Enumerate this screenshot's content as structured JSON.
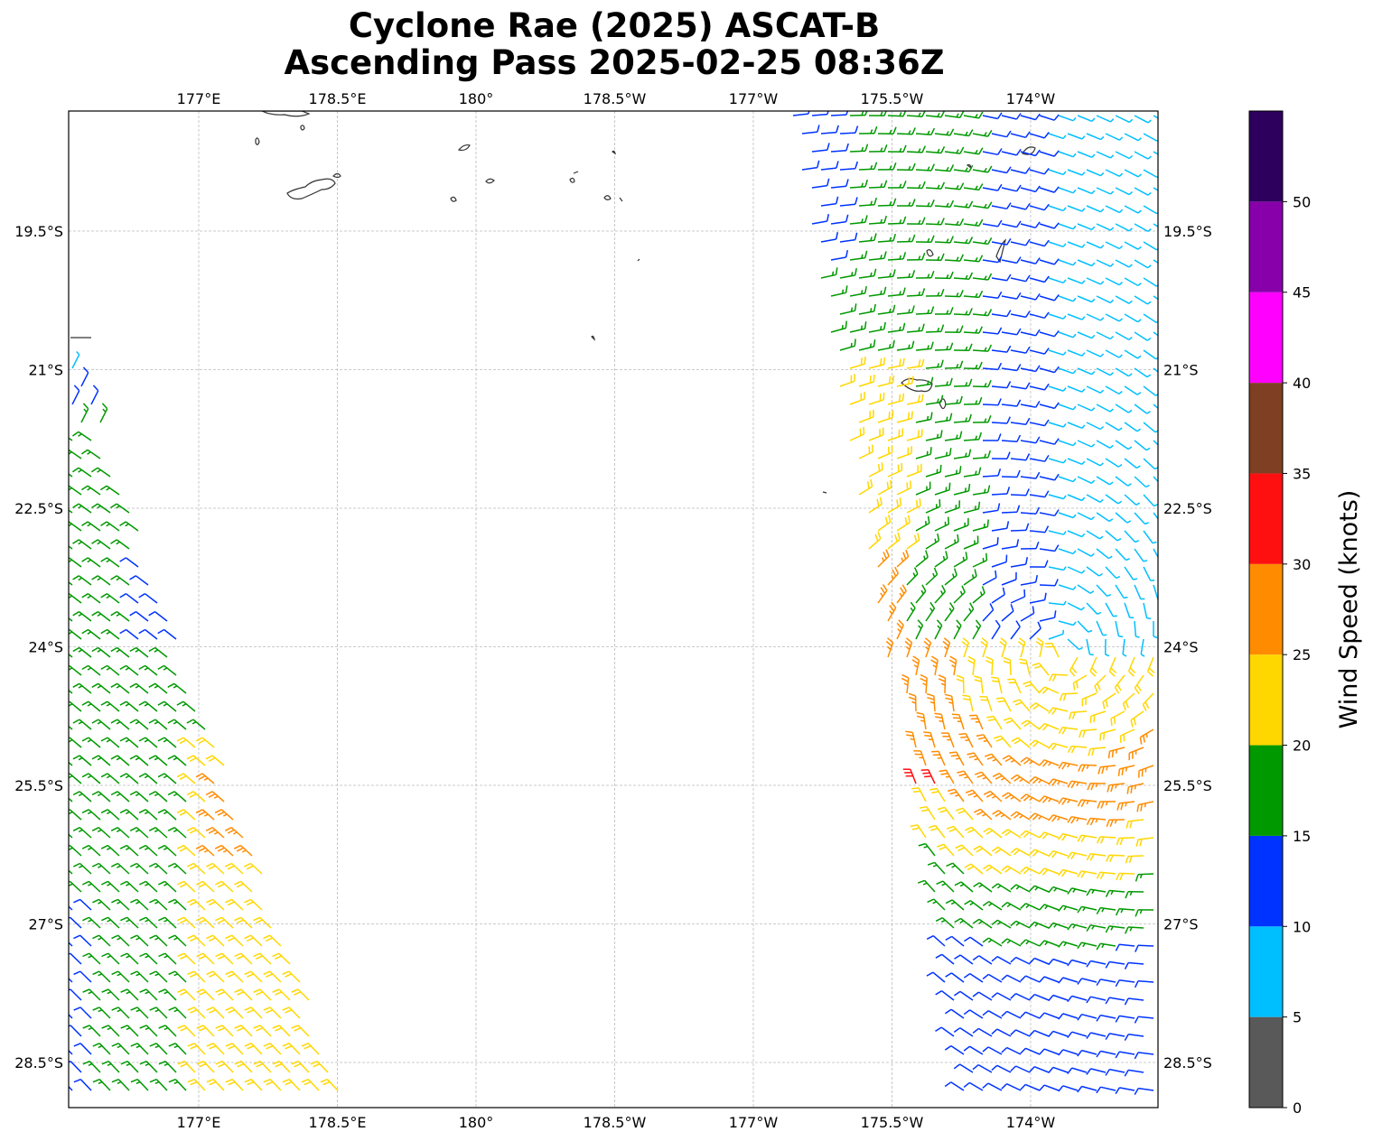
{
  "title_line1": "Cyclone Rae (2025) ASCAT-B",
  "title_line2": "Ascending Pass 2025-02-25 08:36Z",
  "lon_ticks": [
    {
      "lon": 177.0,
      "label": "177°E"
    },
    {
      "lon": 178.5,
      "label": "178.5°E"
    },
    {
      "lon": 180.0,
      "label": "180°"
    },
    {
      "lon": 181.5,
      "label": "178.5°W"
    },
    {
      "lon": 183.0,
      "label": "177°W"
    },
    {
      "lon": 184.5,
      "label": "175.5°W"
    },
    {
      "lon": 186.0,
      "label": "174°W"
    }
  ],
  "lat_ticks": [
    {
      "lat": -19.5,
      "label": "19.5°S"
    },
    {
      "lat": -21.0,
      "label": "21°S"
    },
    {
      "lat": -22.5,
      "label": "22.5°S"
    },
    {
      "lat": -24.0,
      "label": "24°S"
    },
    {
      "lat": -25.5,
      "label": "25.5°S"
    },
    {
      "lat": -27.0,
      "label": "27°S"
    },
    {
      "lat": -28.5,
      "label": "28.5°S"
    }
  ],
  "map_extent": {
    "lon_min": 175.6,
    "lon_max": 187.4,
    "lat_min": -29.0,
    "lat_max": -18.2
  },
  "colorbar": {
    "label": "Wind Speed (knots)",
    "ticks": [
      "0",
      "5",
      "10",
      "15",
      "20",
      "25",
      "30",
      "35",
      "40",
      "45",
      "50"
    ],
    "bins": [
      {
        "from": 0,
        "to": 5,
        "color": "#595959"
      },
      {
        "from": 5,
        "to": 10,
        "color": "#00bfff"
      },
      {
        "from": 10,
        "to": 15,
        "color": "#0033ff"
      },
      {
        "from": 15,
        "to": 20,
        "color": "#009900"
      },
      {
        "from": 20,
        "to": 25,
        "color": "#ffd700"
      },
      {
        "from": 25,
        "to": 30,
        "color": "#ff8c00"
      },
      {
        "from": 30,
        "to": 35,
        "color": "#ff1010"
      },
      {
        "from": 35,
        "to": 40,
        "color": "#7f3f22"
      },
      {
        "from": 40,
        "to": 45,
        "color": "#ff00ff"
      },
      {
        "from": 45,
        "to": 50,
        "color": "#8800aa"
      },
      {
        "from": 50,
        "to": 55,
        "color": "#2d005e"
      }
    ]
  },
  "chart_data": {
    "type": "wind-barb map",
    "swaths": [
      {
        "name": "west",
        "coverage": "175.6°E–178.6°E, 20.6°S–29°S",
        "dominant_speeds_kt": "15-20",
        "max_kt": "25-30"
      },
      {
        "name": "east",
        "coverage": "176.6°W–172.6°W, 18.2°S–29°S",
        "dominant_speeds_kt": "5-20",
        "max_kt": "30-35"
      }
    ]
  }
}
